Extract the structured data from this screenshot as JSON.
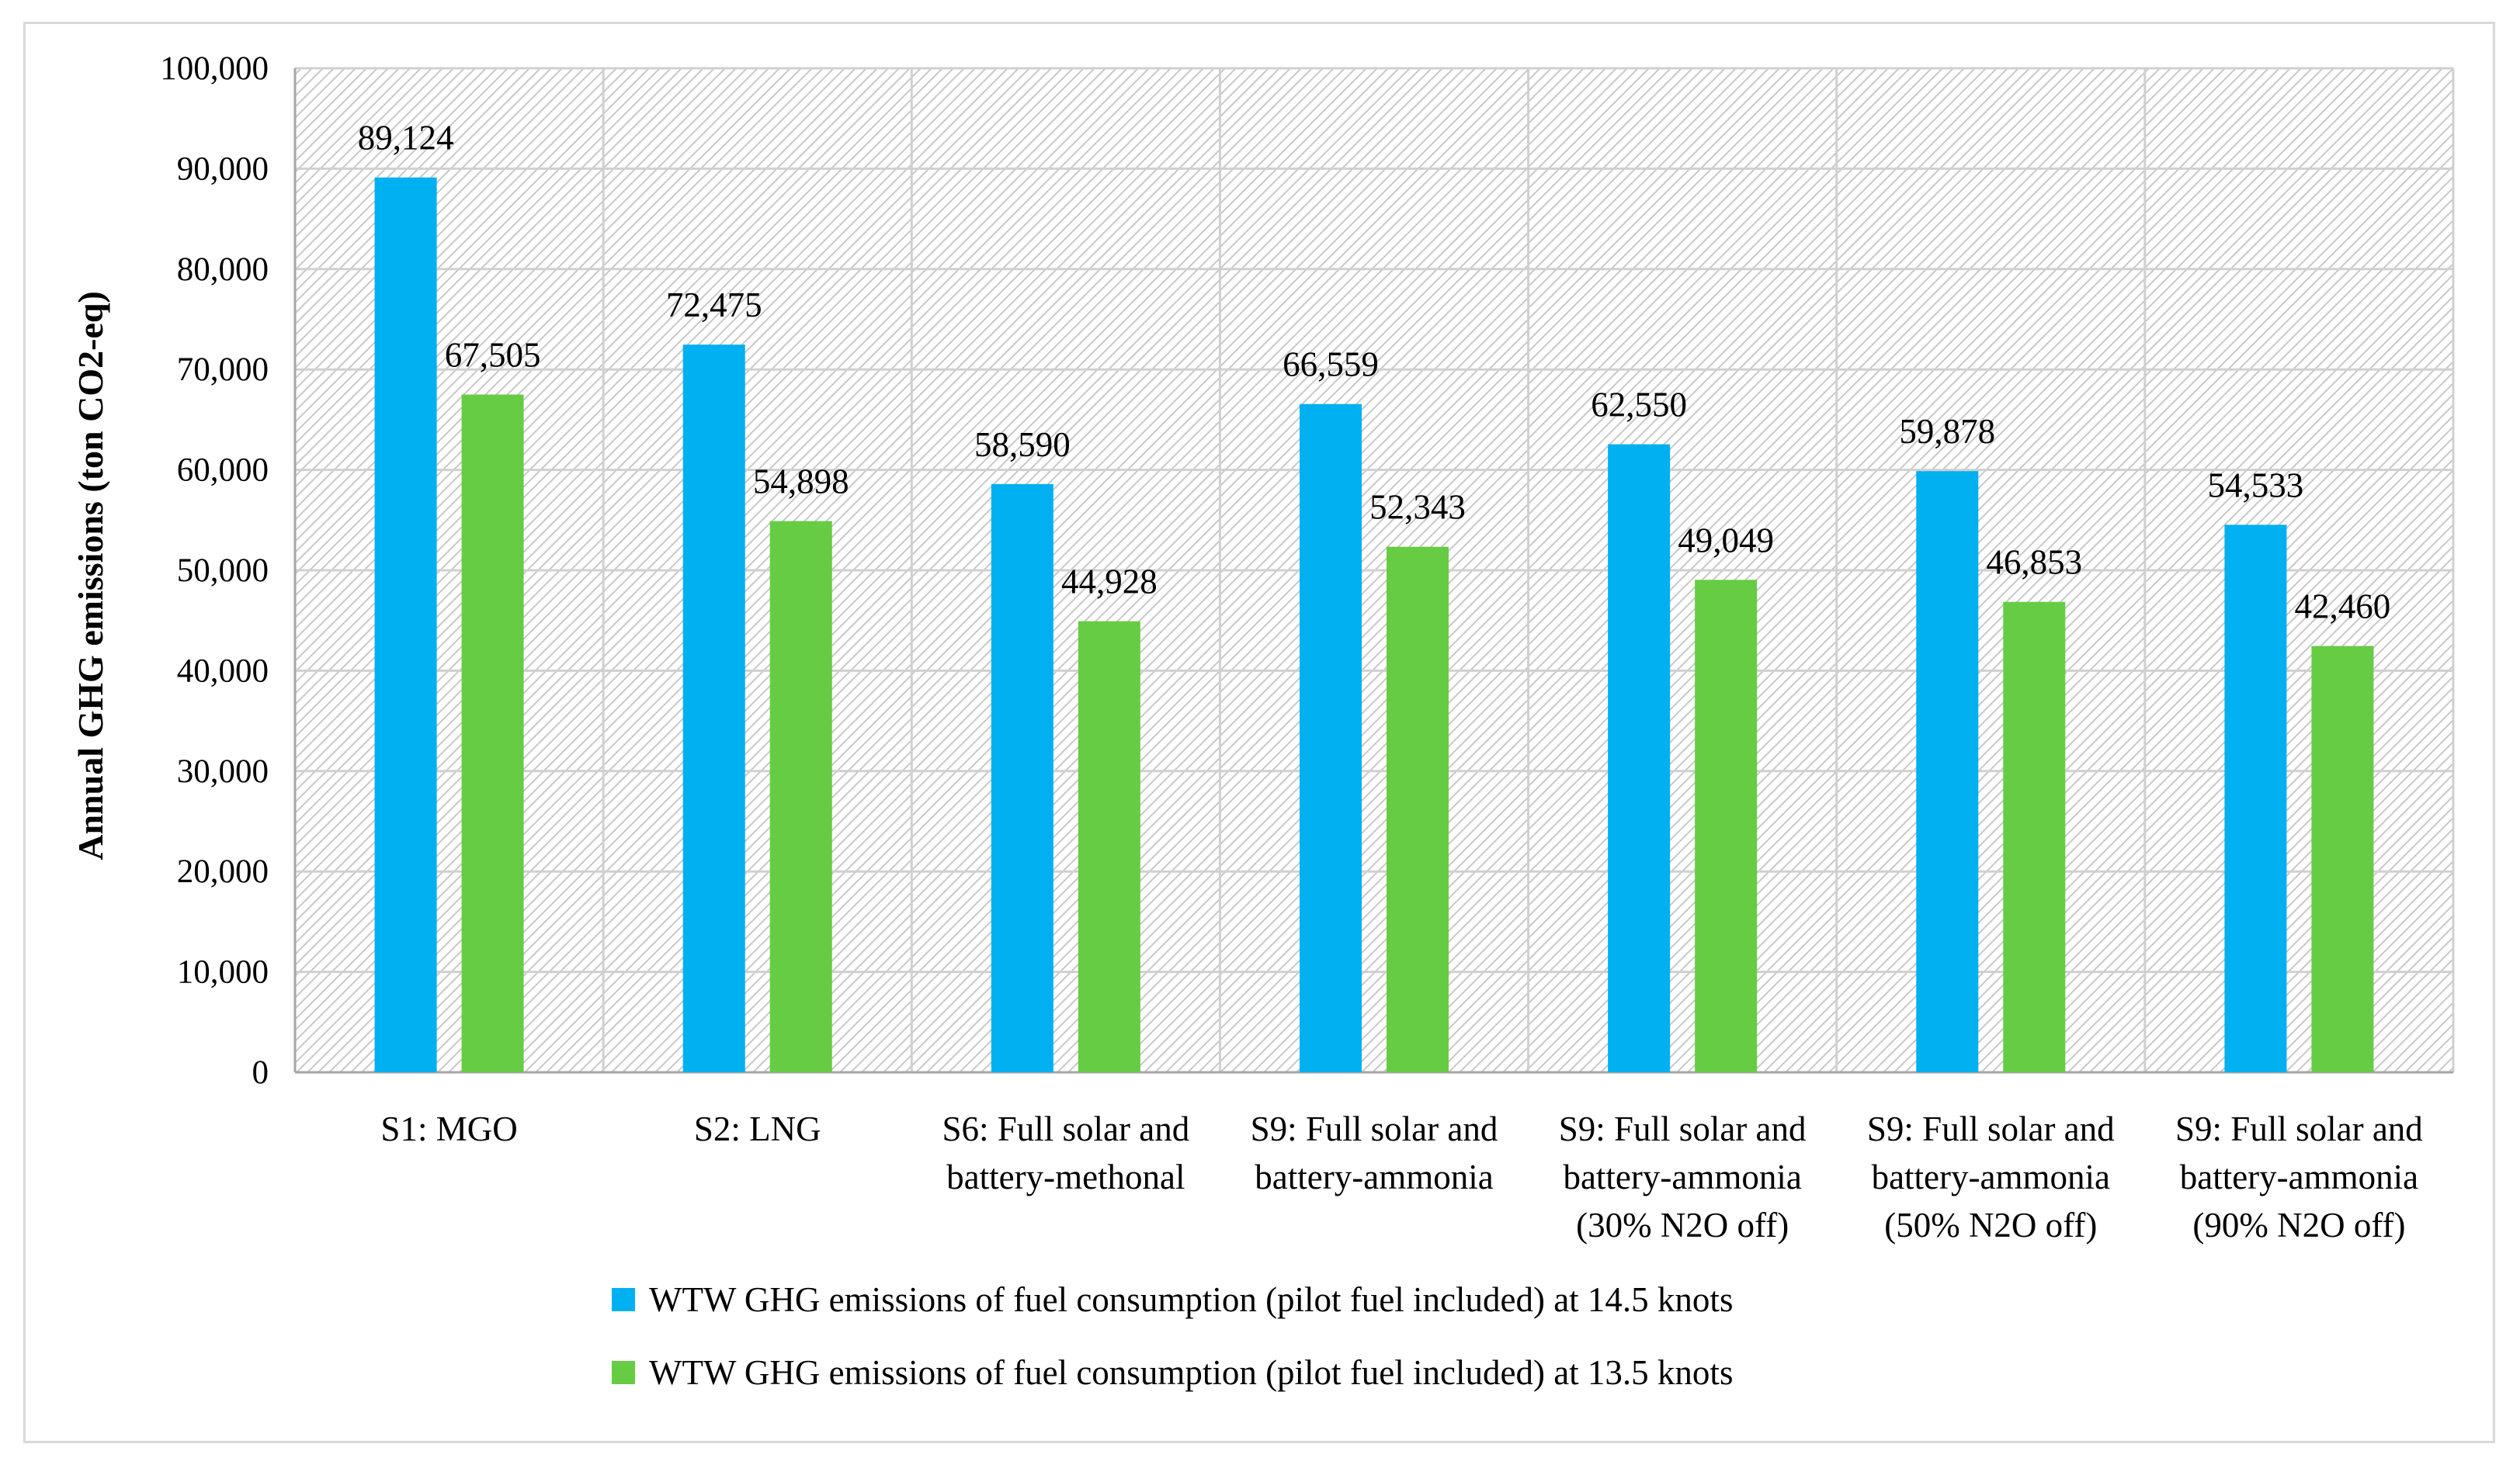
{
  "chart_data": {
    "type": "bar",
    "title": "",
    "xlabel": "",
    "ylabel": "Annual GHG emissions (ton CO2-eq)",
    "ylim": [
      0,
      100000
    ],
    "y_ticks": [
      "0",
      "10,000",
      "20,000",
      "30,000",
      "40,000",
      "50,000",
      "60,000",
      "70,000",
      "80,000",
      "90,000",
      "100,000"
    ],
    "y_tick_values": [
      0,
      10000,
      20000,
      30000,
      40000,
      50000,
      60000,
      70000,
      80000,
      90000,
      100000
    ],
    "grid": true,
    "legend_position": "bottom",
    "categories": [
      [
        "S1: MGO"
      ],
      [
        "S2: LNG"
      ],
      [
        "S6: Full solar and",
        "battery-methonal"
      ],
      [
        "S9: Full solar and",
        "battery-ammonia"
      ],
      [
        "S9: Full solar and",
        "battery-ammonia",
        "(30% N2O off)"
      ],
      [
        "S9: Full solar and",
        "battery-ammonia",
        "(50% N2O off)"
      ],
      [
        "S9: Full solar and",
        "battery-ammonia",
        "(90% N2O off)"
      ]
    ],
    "series": [
      {
        "name": "WTW GHG emissions of fuel consumption (pilot fuel included) at 14.5 knots",
        "color": "#00b0f0",
        "values": [
          89124,
          72475,
          58590,
          66559,
          62550,
          59878,
          54533
        ],
        "labels": [
          "89,124",
          "72,475",
          "58,590",
          "66,559",
          "62,550",
          "59,878",
          "54,533"
        ]
      },
      {
        "name": "WTW GHG emissions of fuel consumption (pilot fuel included) at 13.5 knots",
        "color": "#66cc44",
        "values": [
          67505,
          54898,
          44928,
          52343,
          49049,
          46853,
          42460
        ],
        "labels": [
          "67,505",
          "54,898",
          "44,928",
          "52,343",
          "49,049",
          "46,853",
          "42,460"
        ]
      }
    ]
  }
}
